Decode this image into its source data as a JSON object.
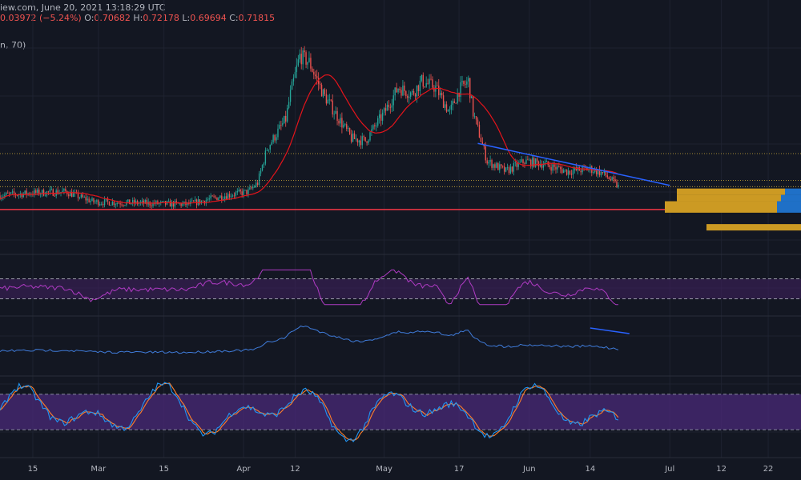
{
  "header": {
    "line1_prefix": "iew.com, June 20, 2021 13:18:29 UTC",
    "change": "0.03972 (−5.24%)",
    "o_label": "O:",
    "o_value": "0.70682",
    "h_label": "H:",
    "h_value": "0.72178",
    "l_label": "L:",
    "l_value": "0.69694",
    "c_label": "C:",
    "c_value": "0.71815",
    "indicator": "n, 70)"
  },
  "colors": {
    "background": "#131722",
    "up": "#26a69a",
    "down": "#ef5350",
    "ma": "#e5141b",
    "trendline": "#2962ff",
    "support": "#f23645",
    "dotted_level": "#d6b23a",
    "rsi": "#b03bc4",
    "rsi_band": "#3d1f5c",
    "obv": "#3f7bd9",
    "stoch_k": "#2196f3",
    "stoch_d": "#ff7f2a",
    "stoch_band": "#4a2a78",
    "vp_gold": "#cc9a23",
    "vp_blue": "#1f70c7"
  },
  "chart_data": {
    "type": "candlestick",
    "x_ticks": [
      "15",
      "Mar",
      "15",
      "Apr",
      "12",
      "May",
      "17",
      "Jun",
      "14",
      "Jul",
      "12",
      "22"
    ],
    "x_tick_dates": [
      "2021-02-15",
      "2021-03-01",
      "2021-03-15",
      "2021-04-01",
      "2021-04-12",
      "2021-05-01",
      "2021-05-17",
      "2021-06-01",
      "2021-06-14",
      "2021-07-01",
      "2021-07-12",
      "2021-07-22"
    ],
    "x_range": [
      "2021-02-08",
      "2021-07-29"
    ],
    "price_range": [
      0.2,
      1.9
    ],
    "levels": {
      "support": 0.44,
      "dotted": [
        0.88,
        0.67,
        0.62
      ]
    },
    "trendline": [
      [
        "2021-05-21",
        0.96
      ],
      [
        "2021-07-01",
        0.63
      ]
    ],
    "price_key": [
      [
        "2021-02-08",
        0.55
      ],
      [
        "2021-02-15",
        0.57
      ],
      [
        "2021-02-22",
        0.58
      ],
      [
        "2021-02-28",
        0.5
      ],
      [
        "2021-03-10",
        0.49
      ],
      [
        "2021-03-20",
        0.48
      ],
      [
        "2021-03-28",
        0.55
      ],
      [
        "2021-04-02",
        0.58
      ],
      [
        "2021-04-04",
        0.65
      ],
      [
        "2021-04-06",
        0.92
      ],
      [
        "2021-04-10",
        1.15
      ],
      [
        "2021-04-11",
        1.35
      ],
      [
        "2021-04-13",
        1.65
      ],
      [
        "2021-04-15",
        1.6
      ],
      [
        "2021-04-18",
        1.35
      ],
      [
        "2021-04-24",
        1.0
      ],
      [
        "2021-04-27",
        0.98
      ],
      [
        "2021-05-01",
        1.2
      ],
      [
        "2021-05-04",
        1.4
      ],
      [
        "2021-05-07",
        1.35
      ],
      [
        "2021-05-09",
        1.45
      ],
      [
        "2021-05-12",
        1.4
      ],
      [
        "2021-05-15",
        1.2
      ],
      [
        "2021-05-17",
        1.38
      ],
      [
        "2021-05-19",
        1.45
      ],
      [
        "2021-05-20",
        1.2
      ],
      [
        "2021-05-23",
        0.82
      ],
      [
        "2021-05-27",
        0.74
      ],
      [
        "2021-05-31",
        0.82
      ],
      [
        "2021-06-04",
        0.8
      ],
      [
        "2021-06-09",
        0.74
      ],
      [
        "2021-06-14",
        0.76
      ],
      [
        "2021-06-17",
        0.72
      ],
      [
        "2021-06-20",
        0.62
      ]
    ],
    "volume_profile": [
      {
        "price": 0.58,
        "gold": 135,
        "blue": 20
      },
      {
        "price": 0.53,
        "gold": 130,
        "blue": 25
      },
      {
        "price": 0.48,
        "gold": 140,
        "blue": 30
      },
      {
        "price": 0.44,
        "gold": 140,
        "blue": 30
      },
      {
        "price": 0.3,
        "gold": 118,
        "blue": 0
      }
    ],
    "rsi_band": [
      30,
      70
    ],
    "stoch_band": [
      20,
      80
    ]
  }
}
